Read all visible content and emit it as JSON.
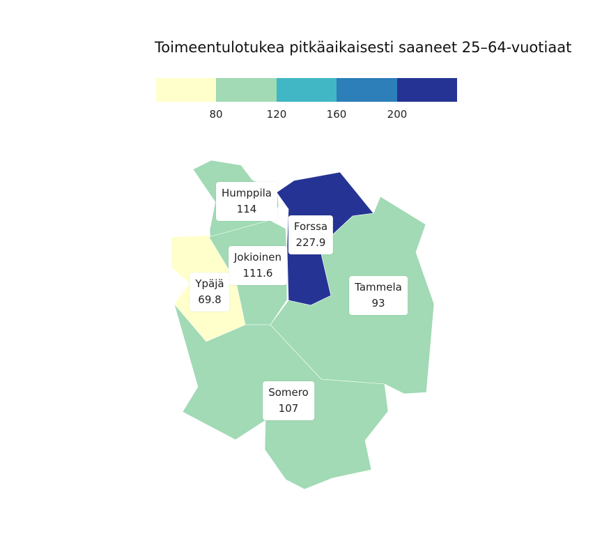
{
  "title": "Toimeentulotukea pitkäaikaisesti saaneet 25–64-vuotiaat",
  "legend": {
    "colors": [
      "#ffffcc",
      "#a1dab4",
      "#41b6c4",
      "#2c7fb8",
      "#253494"
    ],
    "breaks": [
      "80",
      "120",
      "160",
      "200"
    ]
  },
  "regions": [
    {
      "name": "Humppila",
      "value": "114",
      "color": "#a1dab4"
    },
    {
      "name": "Forssa",
      "value": "227.9",
      "color": "#253494"
    },
    {
      "name": "Jokioinen",
      "value": "111.6",
      "color": "#a1dab4"
    },
    {
      "name": "Ypäjä",
      "value": "69.8",
      "color": "#ffffcc"
    },
    {
      "name": "Tammela",
      "value": "93",
      "color": "#a1dab4"
    },
    {
      "name": "Somero",
      "value": "107",
      "color": "#a1dab4"
    }
  ]
}
